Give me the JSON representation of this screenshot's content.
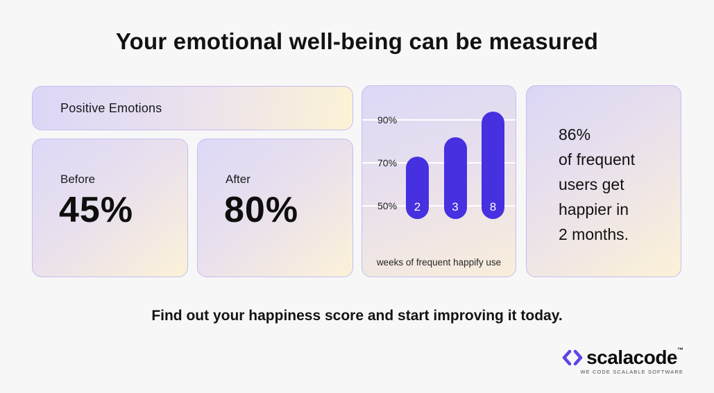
{
  "page": {
    "title": "Your emotional well-being can be measured",
    "cta": "Find out your happiness score and start improving it today."
  },
  "positive_emotions": {
    "label": "Positive Emotions"
  },
  "stats": {
    "before": {
      "label": "Before",
      "value": "45%"
    },
    "after": {
      "label": "After",
      "value": "80%"
    }
  },
  "highlight": {
    "text": "86%\nof frequent\nusers get\nhappier in\n2 months."
  },
  "chart_data": {
    "type": "bar",
    "title": "",
    "xlabel": "weeks of frequent happify use",
    "ylabel": "",
    "categories": [
      "2",
      "3",
      "8"
    ],
    "values": [
      73,
      82,
      94
    ],
    "baseline": 44,
    "yticks": [
      {
        "value": 90,
        "label": "90%"
      },
      {
        "value": 70,
        "label": "70%"
      },
      {
        "value": 50,
        "label": "50%"
      }
    ],
    "ylim": [
      44,
      100
    ],
    "grid": true,
    "legend": false,
    "bar_color": "#4630e0",
    "gridline_color": "#ffffff"
  },
  "logo": {
    "mark_icon": "code-angle-brackets",
    "name": "scalacode",
    "tm": "™",
    "tagline": "WE CODE SCALABLE SOFTWARE"
  },
  "colors": {
    "accent": "#4630e0",
    "logo_mark": "#5b45e8",
    "background": "#f7f7f8",
    "card_border": "#c5bcee"
  }
}
